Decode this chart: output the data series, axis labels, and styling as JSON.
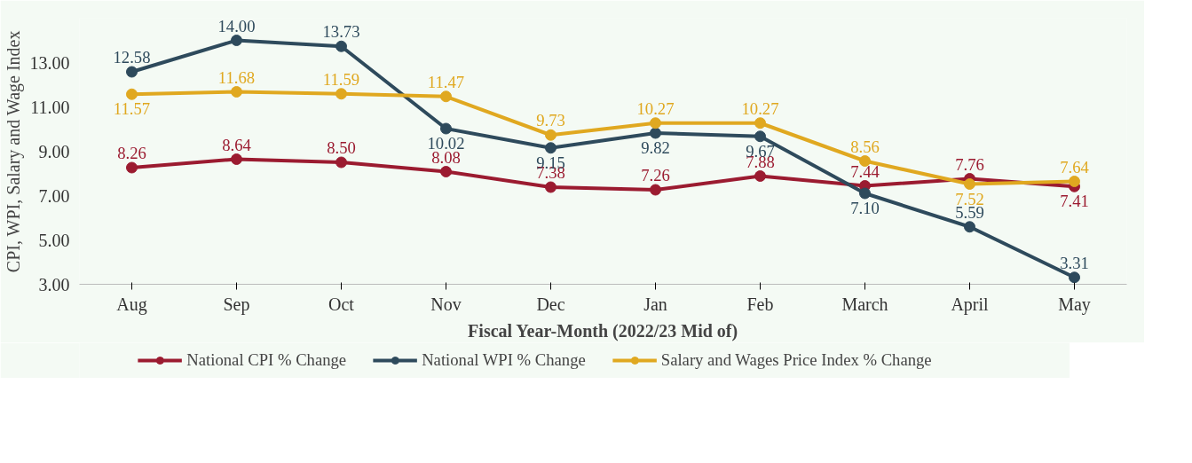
{
  "chart_data": {
    "type": "line",
    "xlabel": "Fiscal Year-Month (2022/23 Mid of)",
    "ylabel": "CPI, WPI, Salary and Wage Index",
    "categories": [
      "Aug",
      "Sep",
      "Oct",
      "Nov",
      "Dec",
      "Jan",
      "Feb",
      "March",
      "April",
      "May"
    ],
    "series": [
      {
        "name": "National CPI % Change",
        "color": "#9b1b30",
        "values": [
          8.26,
          8.64,
          8.5,
          8.08,
          7.38,
          7.26,
          7.88,
          7.44,
          7.76,
          7.41
        ],
        "value_labels": [
          "8.26",
          "8.64",
          "8.50",
          "8.08",
          "7.38",
          "7.26",
          "7.88",
          "7.44",
          "7.76",
          "7.41"
        ]
      },
      {
        "name": "National WPI % Change",
        "color": "#2e4a5c",
        "values": [
          12.58,
          14.0,
          13.73,
          10.02,
          9.15,
          9.82,
          9.67,
          7.1,
          5.59,
          3.31
        ],
        "value_labels": [
          "12.58",
          "14.00",
          "13.73",
          "10.02",
          "9.15",
          "9.82",
          "9.67",
          "7.10",
          "5.59",
          "3.31"
        ]
      },
      {
        "name": "Salary and Wages Price Index % Change",
        "color": "#e0a820",
        "values": [
          11.57,
          11.68,
          11.59,
          11.47,
          9.73,
          10.27,
          10.27,
          8.56,
          7.52,
          7.64
        ],
        "value_labels": [
          "11.57",
          "11.68",
          "11.59",
          "11.47",
          "9.73",
          "10.27",
          "10.27",
          "8.56",
          "7.52",
          "7.64"
        ]
      }
    ],
    "ylim": [
      3,
      15
    ],
    "yticks": [
      {
        "value": 3,
        "label": "3.00"
      },
      {
        "value": 5,
        "label": "5.00"
      },
      {
        "value": 7,
        "label": "7.00"
      },
      {
        "value": 9,
        "label": "9.00"
      },
      {
        "value": 11,
        "label": "11.00"
      },
      {
        "value": 13,
        "label": "13.00"
      }
    ],
    "grid": false,
    "legend": "bottom",
    "marker": "circle",
    "line_style": "solid"
  }
}
